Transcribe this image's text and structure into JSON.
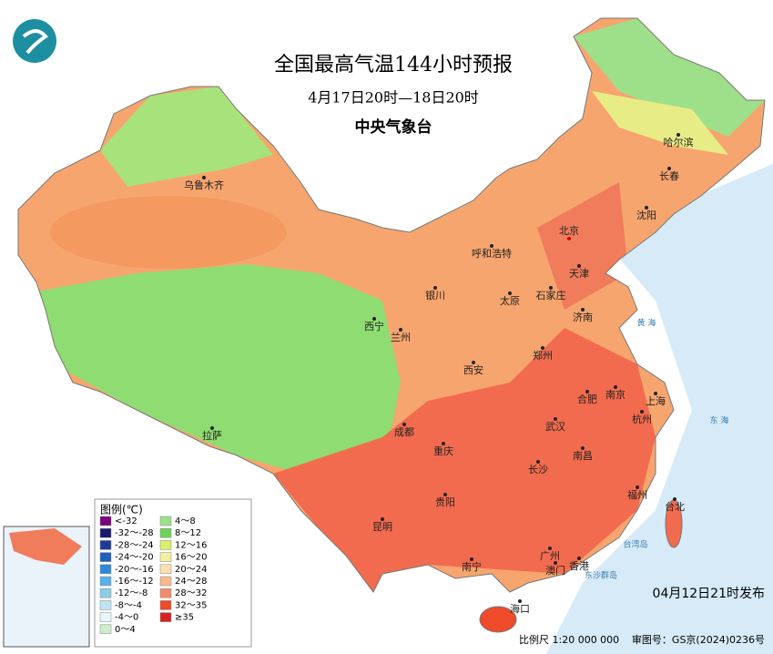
{
  "header": {
    "title": "全国最高气温144小时预报",
    "subtitle": "4月17日20时—18日20时",
    "source": "中央气象台"
  },
  "cities": [
    "乌鲁木齐",
    "哈尔滨",
    "长春",
    "沈阳",
    "北京",
    "天津",
    "呼和浩特",
    "银川",
    "太原",
    "石家庄",
    "济南",
    "西宁",
    "兰州",
    "郑州",
    "西安",
    "南京",
    "上海",
    "合肥",
    "杭州",
    "武汉",
    "成都",
    "拉萨",
    "重庆",
    "长沙",
    "南昌",
    "福州",
    "台北",
    "贵阳",
    "昆明",
    "南宁",
    "广州",
    "澳门",
    "香港",
    "海口"
  ],
  "seas": [
    "黄  海",
    "东  海",
    "台湾岛",
    "东沙群岛"
  ],
  "legend": {
    "title": "图例(℃)",
    "items": [
      {
        "label": "<-32",
        "color": "#7b007b"
      },
      {
        "label": "-32～-28",
        "color": "#1a1a6e"
      },
      {
        "label": "-28～-24",
        "color": "#1f3c99"
      },
      {
        "label": "-24～-20",
        "color": "#1e5fc0"
      },
      {
        "label": "-20～-16",
        "color": "#2e8ad8"
      },
      {
        "label": "-16～-12",
        "color": "#5ab0e8"
      },
      {
        "label": "-12～-8",
        "color": "#8ccde8"
      },
      {
        "label": "-8～-4",
        "color": "#bde6f2"
      },
      {
        "label": "-4～0",
        "color": "#e8f6fa"
      },
      {
        "label": "0～4",
        "color": "#cdeec8"
      },
      {
        "label": "4～8",
        "color": "#9ee08a"
      },
      {
        "label": "8～12",
        "color": "#6fd25a"
      },
      {
        "label": "12～16",
        "color": "#d8f06a"
      },
      {
        "label": "16～20",
        "color": "#f5f0a0"
      },
      {
        "label": "20～24",
        "color": "#fce0b0"
      },
      {
        "label": "24～28",
        "color": "#f7b98a"
      },
      {
        "label": "28～32",
        "color": "#f38b6b"
      },
      {
        "label": "32～35",
        "color": "#ef4a2a"
      },
      {
        "label": "≥35",
        "color": "#d92020"
      }
    ]
  },
  "footer": {
    "issued": "04月12日21时发布",
    "scale": "比例尺 1:20 000 000",
    "approval": "审图号：GS京(2024)0236号"
  }
}
